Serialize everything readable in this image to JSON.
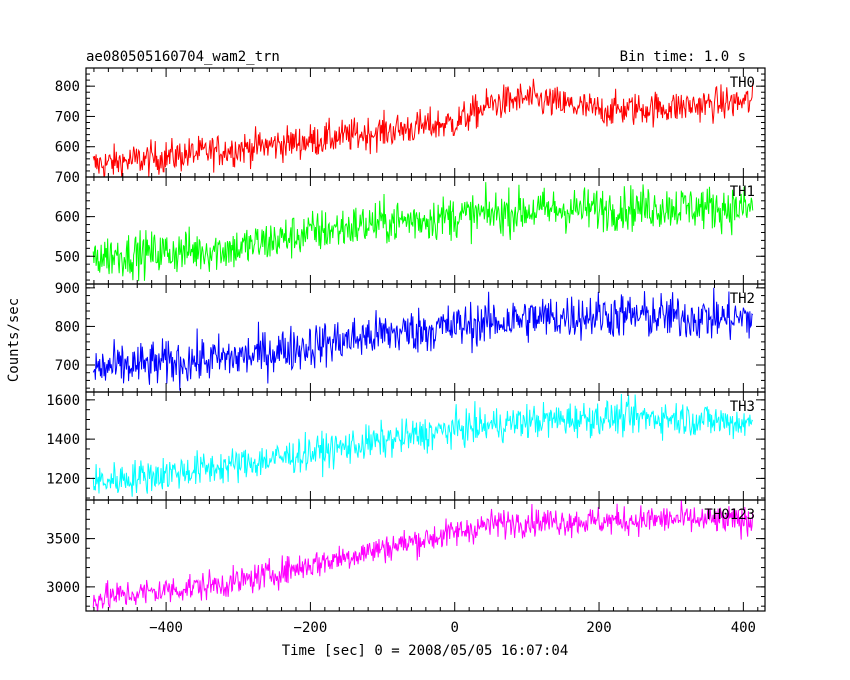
{
  "chart_data": {
    "type": "line",
    "title": "ae080505160704_wam2_trn",
    "subtitle": "Bin time: 1.0 s",
    "xlabel": "Time [sec] 0 = 2008/05/05 16:07:04",
    "ylabel": "Counts/sec",
    "xlim": [
      -511,
      430
    ],
    "xticks": [
      -400,
      -200,
      0,
      200,
      400
    ],
    "grid": false,
    "panels": [
      {
        "name": "TH0",
        "color": "#ff0000",
        "ylim": [
          500,
          860
        ],
        "yticks": [
          600,
          700,
          800
        ],
        "ytick_labels": [
          "600",
          "700",
          "800"
        ],
        "trend_x": [
          -500,
          -200,
          0,
          50,
          100,
          150,
          200,
          300,
          410
        ],
        "trend_y": [
          540,
          620,
          680,
          740,
          760,
          740,
          720,
          730,
          750
        ],
        "noise": 28
      },
      {
        "name": "TH1",
        "color": "#00ff00",
        "ylim": [
          430,
          700
        ],
        "yticks": [
          500,
          600,
          700
        ],
        "ytick_labels": [
          "500",
          "600",
          "700"
        ],
        "trend_x": [
          -500,
          -300,
          -200,
          -100,
          0,
          100,
          200,
          300,
          410
        ],
        "trend_y": [
          500,
          520,
          560,
          585,
          600,
          615,
          620,
          625,
          620
        ],
        "noise": 28
      },
      {
        "name": "TH2",
        "color": "#0000ff",
        "ylim": [
          630,
          910
        ],
        "yticks": [
          700,
          800,
          900
        ],
        "ytick_labels": [
          "700",
          "800",
          "900"
        ],
        "trend_x": [
          -500,
          -300,
          -200,
          -100,
          0,
          100,
          200,
          300,
          410
        ],
        "trend_y": [
          690,
          720,
          750,
          780,
          800,
          820,
          830,
          825,
          820
        ],
        "noise": 30
      },
      {
        "name": "TH3",
        "color": "#00ffff",
        "ylim": [
          1090,
          1640
        ],
        "yticks": [
          1200,
          1400,
          1600
        ],
        "ytick_labels": [
          "1200",
          "1400",
          "1600"
        ],
        "trend_x": [
          -500,
          -300,
          -100,
          0,
          100,
          200,
          300,
          410
        ],
        "trend_y": [
          1180,
          1270,
          1390,
          1450,
          1490,
          1510,
          1510,
          1480
        ],
        "noise": 45
      },
      {
        "name": "TH0123",
        "color": "#ff00ff",
        "ylim": [
          2750,
          3900
        ],
        "yticks": [
          3000,
          3500
        ],
        "ytick_labels": [
          "3000",
          "3500"
        ],
        "trend_x": [
          -500,
          -300,
          -200,
          -100,
          0,
          50,
          100,
          200,
          300,
          410
        ],
        "trend_y": [
          2880,
          3050,
          3230,
          3400,
          3560,
          3650,
          3680,
          3680,
          3700,
          3680
        ],
        "noise": 75
      }
    ]
  }
}
